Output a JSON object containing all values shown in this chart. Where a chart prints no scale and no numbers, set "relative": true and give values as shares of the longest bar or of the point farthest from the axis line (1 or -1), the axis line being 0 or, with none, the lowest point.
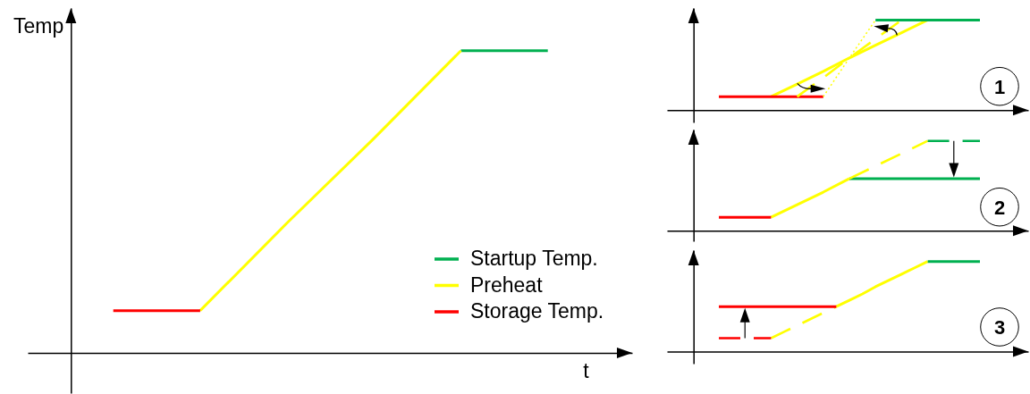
{
  "chart_data": [
    {
      "type": "line",
      "xlabel": "t",
      "ylabel": "Temp",
      "relative": true,
      "legend": "bottom right",
      "categories": [
        null,
        null,
        null,
        null,
        null,
        null
      ],
      "series": [
        {
          "name": "Startup Temp.",
          "color": "#00b050",
          "values": [
            null,
            null,
            null,
            null,
            1,
            1
          ]
        },
        {
          "name": "Preheat",
          "color": "#ffff00",
          "values": [
            null,
            0.14,
            0.43,
            0.71,
            1,
            null
          ]
        },
        {
          "name": "Storage Temp.",
          "color": "#ff0000",
          "values": [
            0.14,
            0.14,
            null,
            null,
            null,
            null
          ]
        }
      ]
    },
    {
      "type": "line",
      "relative": true,
      "annotations": [
        "1"
      ],
      "categories": [
        null,
        null,
        null,
        null,
        null,
        null,
        null,
        null,
        null,
        null,
        null
      ],
      "series": [
        {
          "color": "#ffff00",
          "values": [
            null,
            null,
            0.15,
            0.29,
            0.43,
            0.58,
            0.72,
            0.86,
            1,
            null,
            null
          ]
        },
        {
          "color": "#ffff00",
          "line_style": "dashed",
          "values": [
            null,
            null,
            null,
            0.15,
            0.36,
            0.58,
            0.79,
            1,
            null,
            null,
            null
          ]
        },
        {
          "color": "#ffff00",
          "line_style": "dotted",
          "values": [
            null,
            null,
            null,
            null,
            0.15,
            0.58,
            1,
            null,
            null,
            null,
            null
          ]
        },
        {
          "color": "#ff0000",
          "values": [
            0.15,
            0.15,
            0.15,
            0.15,
            0.15,
            null,
            null,
            null,
            null,
            null,
            null
          ]
        },
        {
          "color": "#00b050",
          "values": [
            null,
            null,
            null,
            null,
            null,
            null,
            1,
            1,
            1,
            1,
            1
          ]
        }
      ]
    },
    {
      "type": "line",
      "relative": true,
      "annotations": [
        "2"
      ],
      "categories": [
        null,
        null,
        null,
        null,
        null,
        null,
        null,
        null,
        null,
        null,
        null
      ],
      "series": [
        {
          "color": "#ffff00",
          "values": [
            null,
            null,
            0.15,
            0.29,
            0.43,
            0.58,
            null,
            null,
            null,
            null,
            null
          ]
        },
        {
          "color": "#ffff00",
          "line_style": "dashed",
          "values": [
            null,
            null,
            null,
            null,
            null,
            0.58,
            0.72,
            0.86,
            1,
            null,
            null
          ]
        },
        {
          "color": "#ff0000",
          "values": [
            0.15,
            0.15,
            0.15,
            null,
            null,
            null,
            null,
            null,
            null,
            null,
            null
          ]
        },
        {
          "color": "#00b050",
          "values": [
            null,
            null,
            null,
            null,
            null,
            0.58,
            0.58,
            0.58,
            0.58,
            0.58,
            0.58
          ]
        },
        {
          "color": "#00b050",
          "line_style": "dashed",
          "values": [
            null,
            null,
            null,
            null,
            null,
            null,
            null,
            null,
            1,
            1,
            1
          ]
        }
      ]
    },
    {
      "type": "line",
      "relative": true,
      "annotations": [
        "3"
      ],
      "categories": [
        null,
        null,
        null,
        null,
        null,
        null,
        null,
        null,
        null,
        null,
        null,
        null,
        null,
        null,
        null,
        null,
        null,
        null,
        null,
        null,
        null
      ],
      "series": [
        {
          "color": "#ffff00",
          "line_style": "dashed",
          "values": [
            null,
            null,
            null,
            null,
            0.15,
            0.22,
            0.29,
            0.36,
            0.43,
            0.5,
            null,
            null,
            null,
            null,
            null,
            null,
            null,
            null,
            null,
            null,
            null
          ]
        },
        {
          "color": "#ffff00",
          "values": [
            null,
            null,
            null,
            null,
            null,
            null,
            null,
            null,
            null,
            0.5,
            0.57,
            0.64,
            0.72,
            0.79,
            0.86,
            0.93,
            1,
            null,
            null,
            null,
            null
          ]
        },
        {
          "color": "#ff0000",
          "values": [
            0.5,
            0.5,
            0.5,
            0.5,
            0.5,
            0.5,
            0.5,
            0.5,
            0.5,
            0.5,
            null,
            null,
            null,
            null,
            null,
            null,
            null,
            null,
            null,
            null,
            null
          ]
        },
        {
          "color": "#ff0000",
          "line_style": "dashed",
          "values": [
            0.15,
            0.15,
            0.15,
            0.15,
            0.15,
            null,
            null,
            null,
            null,
            null,
            null,
            null,
            null,
            null,
            null,
            null,
            null,
            null,
            null,
            null,
            null
          ]
        },
        {
          "color": "#00b050",
          "values": [
            null,
            null,
            null,
            null,
            null,
            null,
            null,
            null,
            null,
            null,
            null,
            null,
            null,
            null,
            null,
            null,
            1,
            1,
            1,
            1,
            1
          ]
        }
      ]
    }
  ]
}
